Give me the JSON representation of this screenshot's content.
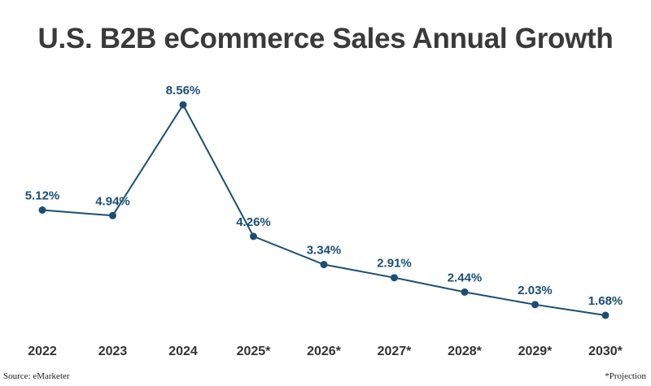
{
  "chart_data": {
    "type": "line",
    "title": "U.S. B2B eCommerce Sales Annual Growth",
    "categories": [
      "2022",
      "2023",
      "2024",
      "2025*",
      "2026*",
      "2027*",
      "2028*",
      "2029*",
      "2030*"
    ],
    "values": [
      5.12,
      4.94,
      8.56,
      4.26,
      3.34,
      2.91,
      2.44,
      2.03,
      1.68
    ],
    "data_labels": [
      "5.12%",
      "4.94%",
      "8.56%",
      "4.26%",
      "3.34%",
      "2.91%",
      "2.44%",
      "2.03%",
      "1.68%"
    ],
    "series_color": "#1a4f73",
    "grid": false,
    "source": "Source: eMarketer",
    "footnote": "*Projection"
  }
}
